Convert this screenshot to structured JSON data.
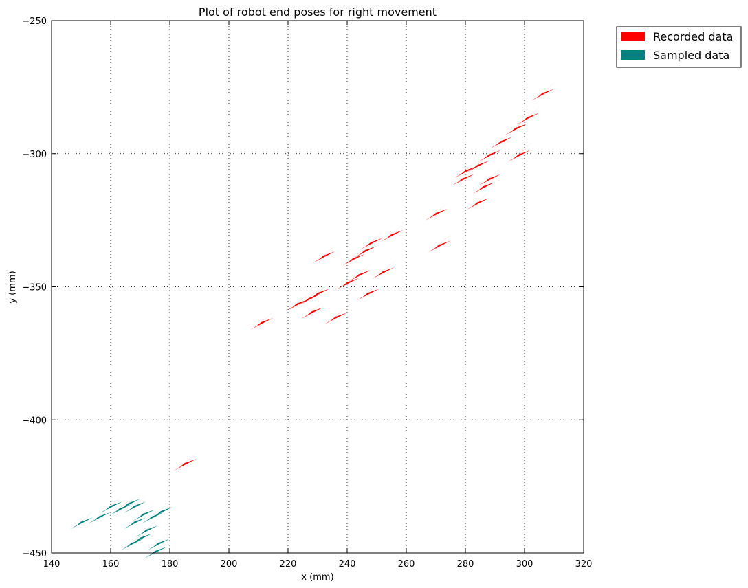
{
  "chart_data": {
    "type": "scatter",
    "marker": "arrow",
    "title": "Plot of robot end poses for right movement",
    "xlabel": "x (mm)",
    "ylabel": "y (mm)",
    "xlim": [
      140,
      320
    ],
    "ylim": [
      -450,
      -250
    ],
    "xticks": [
      140,
      160,
      180,
      200,
      220,
      240,
      260,
      280,
      300,
      320
    ],
    "yticks": [
      -450,
      -400,
      -350,
      -300,
      -250
    ],
    "grid": true,
    "legend": {
      "placement": "outside-top-right"
    },
    "series": [
      {
        "name": "Recorded data",
        "color": "#ff0000",
        "points": [
          [
            306,
            -277
          ],
          [
            301,
            -286
          ],
          [
            297,
            -290
          ],
          [
            292,
            -295
          ],
          [
            298,
            -300
          ],
          [
            288,
            -300
          ],
          [
            284,
            -304
          ],
          [
            280,
            -306
          ],
          [
            279,
            -309
          ],
          [
            286,
            -312
          ],
          [
            288,
            -309
          ],
          [
            284,
            -318
          ],
          [
            270,
            -322
          ],
          [
            255,
            -330
          ],
          [
            248,
            -333
          ],
          [
            246,
            -336
          ],
          [
            242,
            -339
          ],
          [
            232,
            -338
          ],
          [
            244,
            -345
          ],
          [
            240,
            -348
          ],
          [
            252,
            -344
          ],
          [
            247,
            -352
          ],
          [
            230,
            -352
          ],
          [
            227,
            -354
          ],
          [
            223,
            -356
          ],
          [
            228,
            -359
          ],
          [
            236,
            -361
          ],
          [
            211,
            -363
          ],
          [
            185,
            -416
          ],
          [
            271,
            -334
          ]
        ]
      },
      {
        "name": "Sampled data",
        "color": "#008080",
        "points": [
          [
            150,
            -438
          ],
          [
            156,
            -436
          ],
          [
            160,
            -432
          ],
          [
            163,
            -433
          ],
          [
            166,
            -431
          ],
          [
            168,
            -432
          ],
          [
            171,
            -435
          ],
          [
            174,
            -436
          ],
          [
            168,
            -438
          ],
          [
            172,
            -441
          ],
          [
            170,
            -444
          ],
          [
            167,
            -446
          ],
          [
            177,
            -434
          ],
          [
            176,
            -446
          ],
          [
            175,
            -449
          ]
        ]
      }
    ]
  }
}
